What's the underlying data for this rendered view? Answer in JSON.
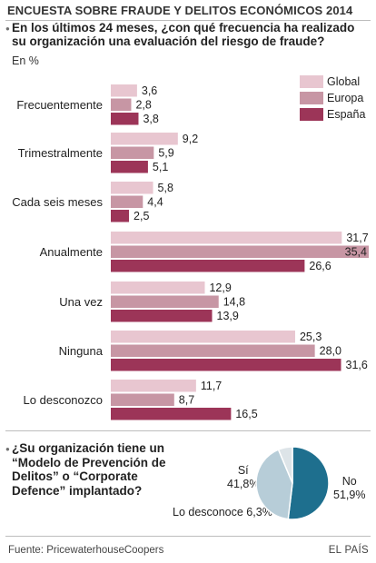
{
  "header": {
    "title": "ENCUESTA SOBRE FRAUDE Y DELITOS ECONÓMICOS 2014"
  },
  "question_main": "En los últimos 24 meses, ¿con qué frecuencia ha realizado su organización una evaluación del riesgo de fraude?",
  "unit_label": "En %",
  "colors": {
    "global": "#e8c6d0",
    "europa": "#c796a4",
    "espana": "#9c3558",
    "pie_no": "#1e6f8e",
    "pie_si": "#b7cdd8",
    "pie_nolo": "#dde4e8"
  },
  "chart_data": [
    {
      "type": "bar",
      "orientation": "horizontal",
      "categories": [
        "Frecuentemente",
        "Trimestralmente",
        "Cada seis meses",
        "Anualmente",
        "Una vez",
        "Ninguna",
        "Lo desconozco"
      ],
      "series": [
        {
          "name": "Global",
          "values": [
            3.6,
            9.2,
            5.8,
            31.7,
            12.9,
            25.3,
            11.7
          ],
          "labels": [
            "3,6",
            "9,2",
            "5,8",
            "31,7",
            "12,9",
            "25,3",
            "11,7"
          ]
        },
        {
          "name": "Europa",
          "values": [
            2.8,
            5.9,
            4.4,
            35.4,
            14.8,
            28.0,
            8.7
          ],
          "labels": [
            "2,8",
            "5,9",
            "4,4",
            "35,4",
            "14,8",
            "28,0",
            "8,7"
          ]
        },
        {
          "name": "España",
          "values": [
            3.8,
            5.1,
            2.5,
            26.6,
            13.9,
            31.6,
            16.5
          ],
          "labels": [
            "3,8",
            "5,1",
            "2,5",
            "26,6",
            "13,9",
            "31,6",
            "16,5"
          ]
        }
      ],
      "xlim": [
        0,
        35.4
      ],
      "legend_position": "top-right"
    },
    {
      "type": "pie",
      "categories": [
        "No",
        "Sí",
        "Lo desconoce"
      ],
      "values": [
        51.9,
        41.8,
        6.3
      ]
    }
  ],
  "pie_section": {
    "question": "¿Su organización tiene un “Modelo de Prevención de Delitos” o “Corporate Defence” implantado?",
    "label_si_name": "Sí",
    "label_si_value": "41,8%",
    "label_no_name": "No",
    "label_no_value": "51,9%",
    "label_nolo": "Lo desconoce 6,3%"
  },
  "footer": {
    "source": "Fuente: PricewaterhouseCoopers",
    "brand": "EL PAÍS"
  }
}
